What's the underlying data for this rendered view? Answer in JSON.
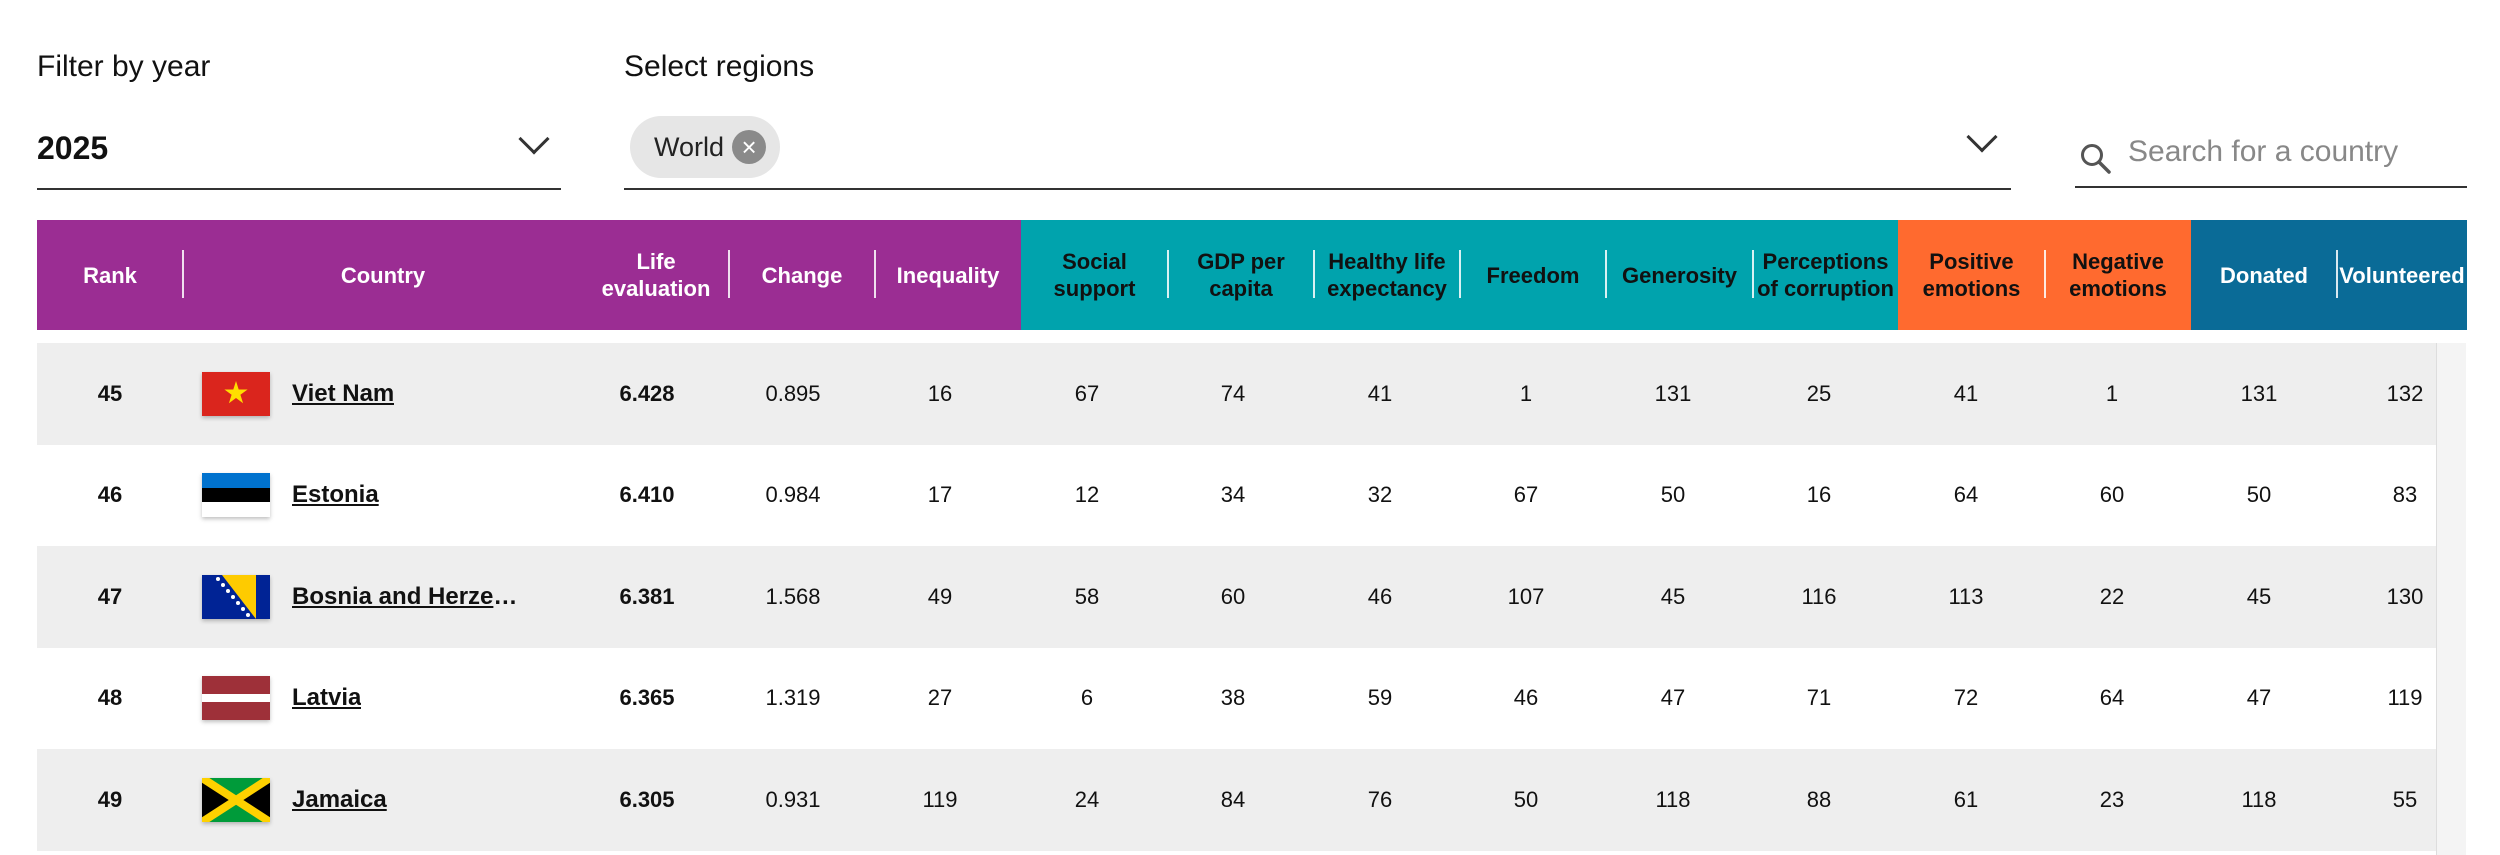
{
  "filters": {
    "year_label": "Filter by year",
    "year_value": "2025",
    "region_label": "Select regions",
    "region_chip": "World",
    "search_placeholder": "Search for a country"
  },
  "colors": {
    "purple": "#9b2d93",
    "teal": "#00a3ad",
    "orange": "#ff6a2f",
    "blue": "#0a6b97",
    "row_shade": "#eeeeee"
  },
  "headers": [
    {
      "key": "rank",
      "label": "Rank",
      "group": "purple"
    },
    {
      "key": "country",
      "label": "Country",
      "group": "purple"
    },
    {
      "key": "life_evaluation",
      "label": "Life\nevaluation",
      "group": "purple"
    },
    {
      "key": "change",
      "label": "Change",
      "group": "purple"
    },
    {
      "key": "inequality",
      "label": "Inequality",
      "group": "purple"
    },
    {
      "key": "social_support",
      "label": "Social\nsupport",
      "group": "teal"
    },
    {
      "key": "gdp_per_capita",
      "label": "GDP per\ncapita",
      "group": "teal"
    },
    {
      "key": "healthy_life_expectancy",
      "label": "Healthy life\nexpectancy",
      "group": "teal"
    },
    {
      "key": "freedom",
      "label": "Freedom",
      "group": "teal"
    },
    {
      "key": "generosity",
      "label": "Generosity",
      "group": "teal"
    },
    {
      "key": "perceptions_of_corruption",
      "label": "Perceptions\nof corruption",
      "group": "teal"
    },
    {
      "key": "positive_emotions",
      "label": "Positive\nemotions",
      "group": "orange"
    },
    {
      "key": "negative_emotions",
      "label": "Negative\nemotions",
      "group": "orange"
    },
    {
      "key": "donated",
      "label": "Donated",
      "group": "blue"
    },
    {
      "key": "volunteered",
      "label": "Volunteered",
      "group": "blue"
    }
  ],
  "rows": [
    {
      "rank": "45",
      "country": "Viet Nam",
      "flag": "vietnam-flag",
      "life_evaluation": "6.428",
      "change": "0.895",
      "inequality": "16",
      "social_support": "67",
      "gdp_per_capita": "74",
      "healthy_life_expectancy": "41",
      "freedom": "1",
      "generosity": "131",
      "perceptions_of_corruption": "25",
      "positive_emotions": "41",
      "negative_emotions": "1",
      "donated": "131",
      "volunteered": "132"
    },
    {
      "rank": "46",
      "country": "Estonia",
      "flag": "estonia-flag",
      "life_evaluation": "6.410",
      "change": "0.984",
      "inequality": "17",
      "social_support": "12",
      "gdp_per_capita": "34",
      "healthy_life_expectancy": "32",
      "freedom": "67",
      "generosity": "50",
      "perceptions_of_corruption": "16",
      "positive_emotions": "64",
      "negative_emotions": "60",
      "donated": "50",
      "volunteered": "83"
    },
    {
      "rank": "47",
      "country": "Bosnia and Herzeg…",
      "flag": "bosnia-flag",
      "life_evaluation": "6.381",
      "change": "1.568",
      "inequality": "49",
      "social_support": "58",
      "gdp_per_capita": "60",
      "healthy_life_expectancy": "46",
      "freedom": "107",
      "generosity": "45",
      "perceptions_of_corruption": "116",
      "positive_emotions": "113",
      "negative_emotions": "22",
      "donated": "45",
      "volunteered": "130"
    },
    {
      "rank": "48",
      "country": "Latvia",
      "flag": "latvia-flag",
      "life_evaluation": "6.365",
      "change": "1.319",
      "inequality": "27",
      "social_support": "6",
      "gdp_per_capita": "38",
      "healthy_life_expectancy": "59",
      "freedom": "46",
      "generosity": "47",
      "perceptions_of_corruption": "71",
      "positive_emotions": "72",
      "negative_emotions": "64",
      "donated": "47",
      "volunteered": "119"
    },
    {
      "rank": "49",
      "country": "Jamaica",
      "flag": "jamaica-flag",
      "life_evaluation": "6.305",
      "change": "0.931",
      "inequality": "119",
      "social_support": "24",
      "gdp_per_capita": "84",
      "healthy_life_expectancy": "76",
      "freedom": "50",
      "generosity": "118",
      "perceptions_of_corruption": "88",
      "positive_emotions": "61",
      "negative_emotions": "23",
      "donated": "118",
      "volunteered": "55"
    }
  ]
}
